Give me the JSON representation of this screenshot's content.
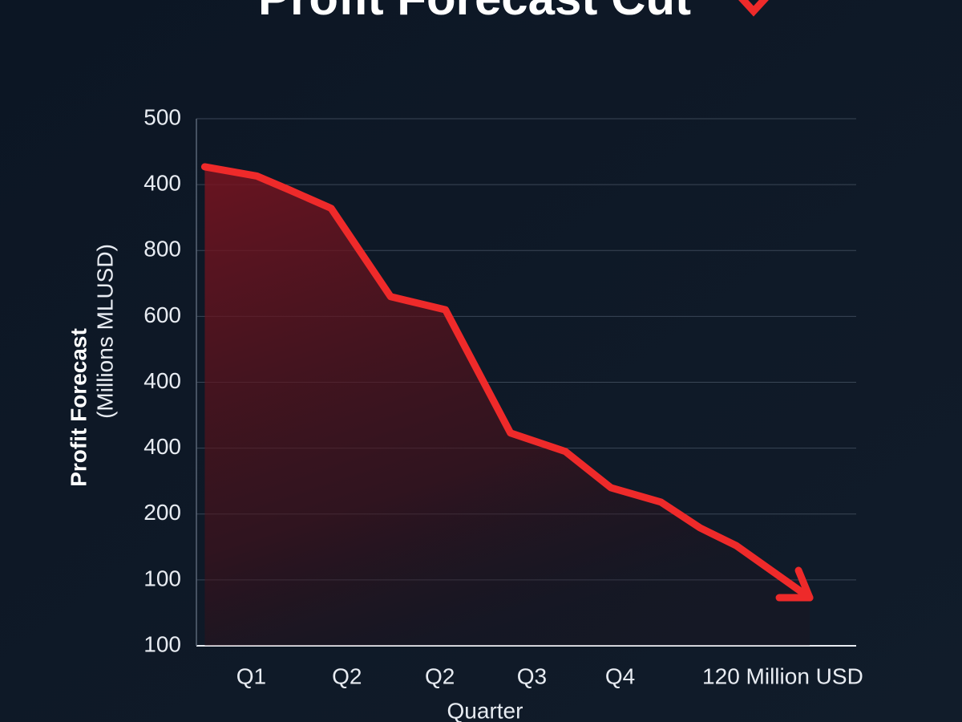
{
  "chart_data": {
    "type": "line",
    "title": "Profit Forecast Cut",
    "y_label_1": "Profit  Forecast",
    "y_label_2": "(Millions MLUSD)",
    "x_label": "Quarter",
    "color": "#ee2a2a",
    "grid": true,
    "x": [
      0.5,
      1.06,
      1.41,
      1.86,
      2.5,
      3.09,
      3.79,
      4.38,
      4.87,
      5.41,
      5.83,
      6.22,
      7.01
    ],
    "values": [
      7.27,
      7.13,
      6.92,
      6.64,
      5.3,
      5.1,
      3.23,
      2.95,
      2.4,
      2.18,
      1.79,
      1.52,
      0.73
    ],
    "xlim": [
      0.41,
      7.51
    ],
    "xticks": [
      {
        "value": 1,
        "label": "Q1"
      },
      {
        "value": 2.03,
        "label": "Q2"
      },
      {
        "value": 3.03,
        "label": "Q2"
      },
      {
        "value": 4.02,
        "label": "Q3"
      },
      {
        "value": 4.97,
        "label": "Q4"
      },
      {
        "value": 6.72,
        "label": "120 Million USD"
      }
    ],
    "ylim": [
      0,
      8
    ],
    "yticks": [
      {
        "value": 0,
        "label": "100"
      },
      {
        "value": 1,
        "label": "100"
      },
      {
        "value": 2,
        "label": "200"
      },
      {
        "value": 3,
        "label": "400"
      },
      {
        "value": 4,
        "label": "400"
      },
      {
        "value": 5,
        "label": "600"
      },
      {
        "value": 6,
        "label": "800"
      },
      {
        "value": 7,
        "label": "400"
      },
      {
        "value": 8,
        "label": "500"
      }
    ]
  }
}
